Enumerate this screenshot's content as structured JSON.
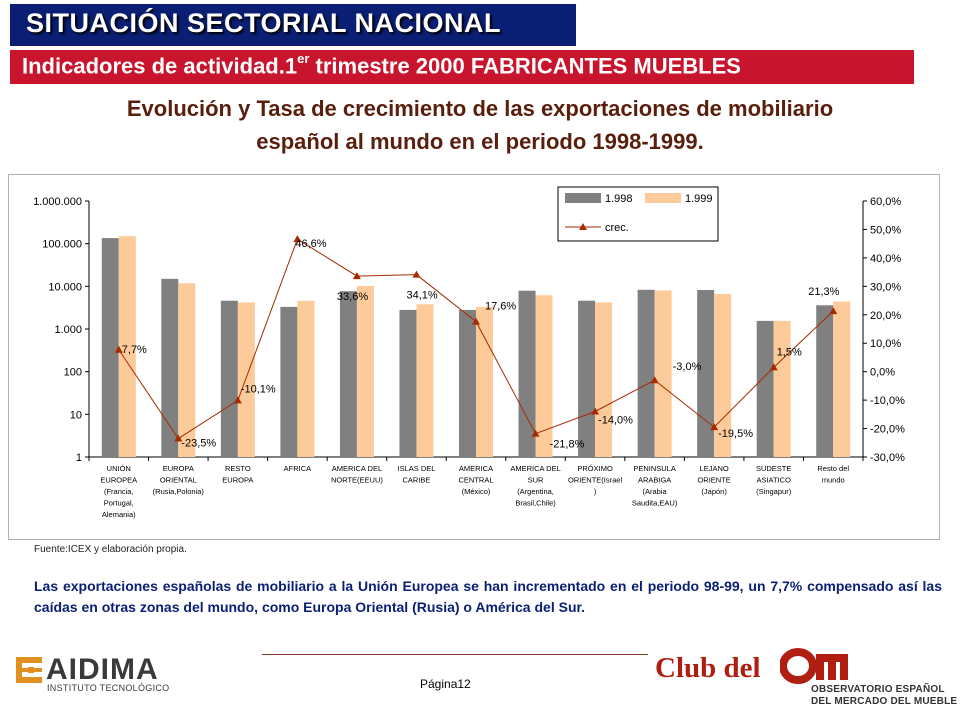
{
  "header": {
    "title": "SITUACIÓN SECTORIAL NACIONAL",
    "subtitle_pre": "Indicadores de actividad.1",
    "subtitle_sup": "er",
    "subtitle_post": " trimestre 2000 FABRICANTES MUEBLES"
  },
  "heading": {
    "line1": "Evolución y Tasa de crecimiento de las exportaciones de mobiliario",
    "line2": "español al mundo en el periodo 1998-1999."
  },
  "colors": {
    "bar_1998": "#808080",
    "bar_1999": "#fdcb99",
    "line_crec": "#a52a00",
    "title_bg": "#0a1f74",
    "subtitle_bg": "#c8142c",
    "heading_text": "#5a1e0c",
    "note_text": "#0a1f74"
  },
  "chart_data": {
    "type": "bar",
    "title": "",
    "categories": [
      [
        "UNIÓN",
        "EUROPEA",
        "(Francia,",
        "Portugal,",
        "Alemania)"
      ],
      [
        "EUROPA",
        "ORIENTAL",
        "(Rusia,Polonia)"
      ],
      [
        "RESTO",
        "EUROPA"
      ],
      [
        "AFRICA"
      ],
      [
        "AMERICA DEL",
        "NORTE(EEUU)"
      ],
      [
        "ISLAS DEL",
        "CARIBE"
      ],
      [
        "AMERICA",
        "CENTRAL",
        "(México)"
      ],
      [
        "AMERICA DEL",
        "SUR",
        "(Argentina,",
        "Brasil,Chile)"
      ],
      [
        "PRÓXIMO",
        "ORIENTE(Israel",
        ")"
      ],
      [
        "PENINSULA",
        "ARABIGA",
        "(Arabia",
        "Saudita,EAU)"
      ],
      [
        "LEJANO",
        "ORIENTE",
        "(Japón)"
      ],
      [
        "SUDESTE",
        "ASIATICO",
        "(Singapur)"
      ],
      [
        "Resto del",
        "mundo"
      ]
    ],
    "series": [
      {
        "name": "1.998",
        "type": "bar",
        "axis": "left",
        "values": [
          135000,
          15000,
          4600,
          3300,
          7700,
          2800,
          2800,
          7900,
          4600,
          8300,
          8200,
          1550,
          3600
        ]
      },
      {
        "name": "1.999",
        "type": "bar",
        "axis": "left",
        "values": [
          150000,
          11800,
          4200,
          4600,
          10200,
          3800,
          3300,
          6200,
          4200,
          8000,
          6600,
          1550,
          4400
        ]
      },
      {
        "name": "crec.",
        "type": "line",
        "axis": "right",
        "values": [
          7.7,
          -23.5,
          -10.1,
          46.6,
          33.6,
          34.1,
          17.6,
          -21.8,
          -14.0,
          -3.0,
          -19.5,
          1.5,
          21.3
        ],
        "labels": [
          "7,7%",
          "-23,5%",
          "-10,1%",
          "46,6%",
          "33,6%",
          "34,1%",
          "17,6%",
          "-21,8%",
          "-14,0%",
          "-3,0%",
          "-19,5%",
          "1,5%",
          "21,3%"
        ]
      }
    ],
    "y_left": {
      "scale": "log",
      "range": [
        1,
        1000000
      ],
      "ticks": [
        "1",
        "10",
        "100",
        "1.000",
        "10.000",
        "100.000",
        "1.000.000"
      ]
    },
    "y_right": {
      "scale": "linear",
      "range": [
        -30,
        60
      ],
      "ticks": [
        "-30,0%",
        "-20,0%",
        "-10,0%",
        "0,0%",
        "10,0%",
        "20,0%",
        "30,0%",
        "40,0%",
        "50,0%",
        "60,0%"
      ]
    },
    "grid": false,
    "legend_position": "top-right"
  },
  "footer": {
    "source": "Fuente:ICEX y elaboración propia.",
    "note": "Las exportaciones españolas de mobiliario a la Unión Europea se han incrementado en el periodo 98-99, un 7,7% compensado así las caídas en otras zonas del mundo, como Europa Oriental (Rusia) o América del Sur.",
    "page": "Página12",
    "aidima_name": "AIDIMA",
    "aidima_sub": "INSTITUTO TECNOLÓGICO",
    "club_text": "Club del",
    "om_line1": "OBSERVATORIO ESPAÑOL",
    "om_line2": "DEL MERCADO DEL MUEBLE"
  }
}
